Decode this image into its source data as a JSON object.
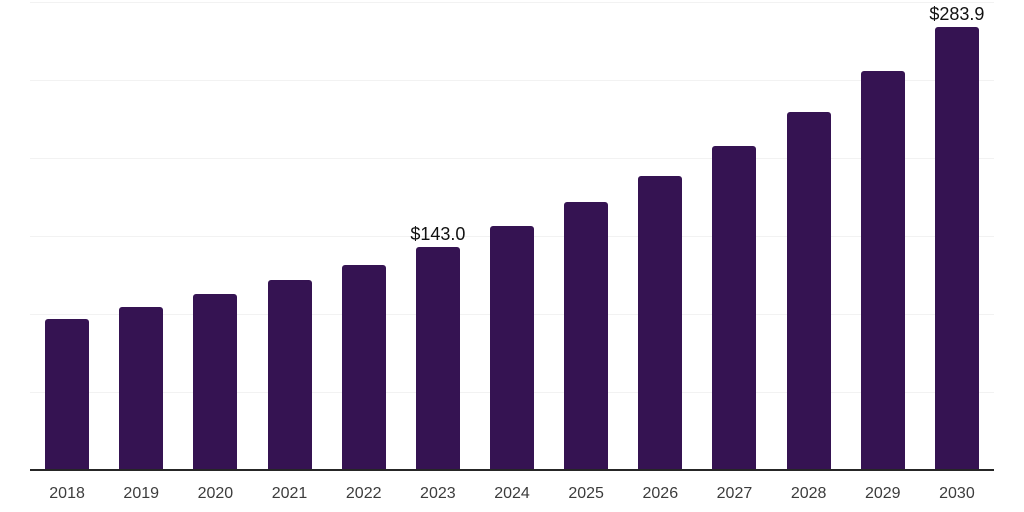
{
  "chart_data": {
    "type": "bar",
    "title": "",
    "xlabel": "",
    "ylabel": "",
    "categories": [
      "2018",
      "2019",
      "2020",
      "2021",
      "2022",
      "2023",
      "2024",
      "2025",
      "2026",
      "2027",
      "2028",
      "2029",
      "2030"
    ],
    "values": [
      96.8,
      104.5,
      112.9,
      121.8,
      131.5,
      143.0,
      156.5,
      171.9,
      188.5,
      207.8,
      229.6,
      255.9,
      283.9
    ],
    "annotations": [
      {
        "category": "2023",
        "label": "$143.0"
      },
      {
        "category": "2030",
        "label": "$283.9"
      }
    ],
    "ylim": [
      0,
      300
    ],
    "grid_step": 50,
    "grid": true,
    "y_axis_labels_visible": false,
    "legend": "none",
    "colors": {
      "bar": "#351352",
      "axis_line": "#262626",
      "gridline": "#f2f2f2",
      "tick_label": "#3c3c3c",
      "data_label": "#111111",
      "background": "#ffffff"
    }
  }
}
